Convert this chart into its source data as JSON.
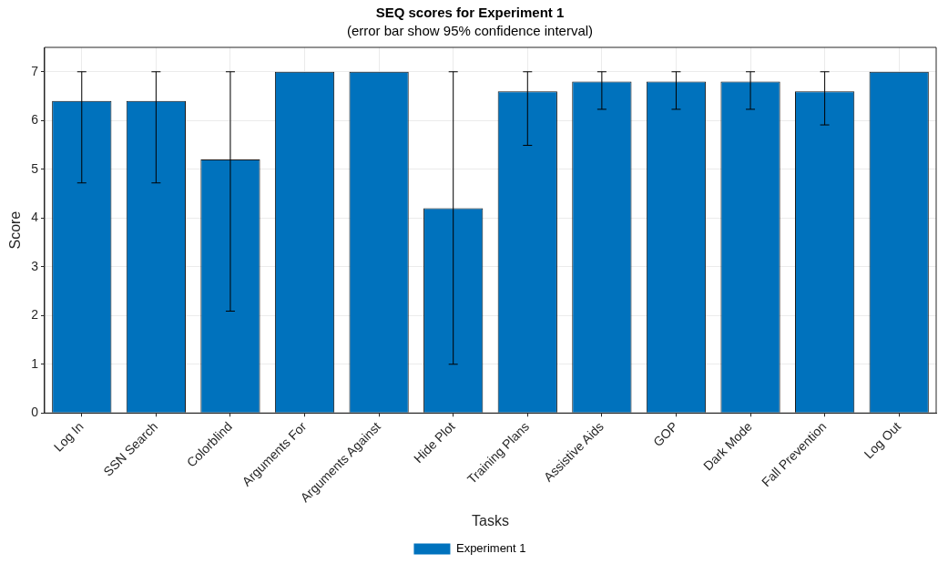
{
  "chart_data": {
    "type": "bar",
    "title": "SEQ scores for Experiment 1",
    "subtitle": "(error bar show 95% confidence interval)",
    "xlabel": "Tasks",
    "ylabel": "Score",
    "categories": [
      "Log In",
      "SSN Search",
      "Colorblind",
      "Arguments For",
      "Arguments Against",
      "Hide Plot",
      "Training Plans",
      "Assistive Aids",
      "GOP",
      "Dark Mode",
      "Fall Prevention",
      "Log Out"
    ],
    "series": [
      {
        "name": "Experiment 1",
        "color": "#0072bd",
        "values": [
          6.4,
          6.4,
          5.2,
          7,
          7,
          4.2,
          6.6,
          6.8,
          6.8,
          6.8,
          6.6,
          7
        ],
        "errors": [
          [
            4.72,
            7
          ],
          [
            4.72,
            7
          ],
          [
            2.09,
            7
          ],
          null,
          null,
          [
            1.0,
            7
          ],
          [
            5.49,
            7
          ],
          [
            6.23,
            7
          ],
          [
            6.23,
            7
          ],
          [
            6.23,
            7
          ],
          [
            5.91,
            7
          ],
          null
        ]
      }
    ],
    "ylim": [
      0,
      7.5
    ],
    "yticks": [
      0,
      1,
      2,
      3,
      4,
      5,
      6,
      7
    ],
    "grid": true,
    "legend": "bottom"
  }
}
